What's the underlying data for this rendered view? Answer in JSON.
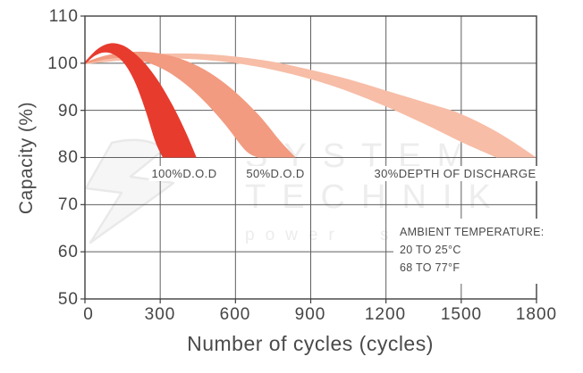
{
  "watermark": {
    "line1": "SYSTEM",
    "line2": "TECHNIK",
    "tagline": "power solutions"
  },
  "chart_data": {
    "type": "area",
    "title": "",
    "xlabel": "Number of cycles (cycles)",
    "ylabel": "Capacity (%)",
    "xlim": [
      0,
      1800
    ],
    "ylim": [
      50,
      110
    ],
    "grid": true,
    "x_ticks": [
      "0",
      "300",
      "600",
      "900",
      "1200",
      "1500",
      "1800"
    ],
    "y_ticks": [
      "110",
      "100",
      "90",
      "80",
      "70",
      "60",
      "50"
    ],
    "annotations": {
      "ambient": {
        "line1": "AMBIENT TEMPERATURE:",
        "line2": "20 TO 25°C",
        "line3": "68 TO 77°F"
      }
    },
    "series": [
      {
        "name": "30% depth of discharge",
        "label": "30%DEPTH OF DISCHARGE",
        "color": "#f7bda7",
        "upper": [
          [
            0,
            100.2
          ],
          [
            150,
            101.4
          ],
          [
            300,
            102.0
          ],
          [
            450,
            102.0
          ],
          [
            600,
            101.4
          ],
          [
            750,
            100.3
          ],
          [
            900,
            98.6
          ],
          [
            1050,
            96.6
          ],
          [
            1200,
            94.2
          ],
          [
            1380,
            91.3
          ],
          [
            1500,
            89.2
          ],
          [
            1650,
            85.2
          ],
          [
            1800,
            80
          ]
        ],
        "lower": [
          [
            0,
            99.8
          ],
          [
            150,
            100.6
          ],
          [
            300,
            101.0
          ],
          [
            450,
            100.8
          ],
          [
            600,
            100.0
          ],
          [
            750,
            98.6
          ],
          [
            900,
            96.6
          ],
          [
            1050,
            94.0
          ],
          [
            1200,
            90.8
          ],
          [
            1350,
            87.2
          ],
          [
            1500,
            83.3
          ],
          [
            1640,
            80
          ]
        ]
      },
      {
        "name": "50% depth of discharge",
        "label": "50%D.O.D",
        "color": "#f29b80",
        "upper": [
          [
            0,
            100.2
          ],
          [
            80,
            101.6
          ],
          [
            160,
            102.3
          ],
          [
            250,
            102.4
          ],
          [
            340,
            101.6
          ],
          [
            430,
            99.9
          ],
          [
            520,
            97.2
          ],
          [
            610,
            93.4
          ],
          [
            700,
            88.6
          ],
          [
            780,
            83.4
          ],
          [
            840,
            80
          ]
        ],
        "lower": [
          [
            0,
            99.8
          ],
          [
            80,
            100.8
          ],
          [
            160,
            101.1
          ],
          [
            240,
            100.3
          ],
          [
            320,
            98.5
          ],
          [
            400,
            95.6
          ],
          [
            480,
            91.7
          ],
          [
            560,
            86.9
          ],
          [
            640,
            81.5
          ],
          [
            690,
            80
          ]
        ]
      },
      {
        "name": "100% depth of discharge",
        "label": "100%D.O.D",
        "color": "#e73b2e",
        "upper": [
          [
            0,
            100.3
          ],
          [
            50,
            103.0
          ],
          [
            100,
            104.2
          ],
          [
            150,
            103.8
          ],
          [
            200,
            102.0
          ],
          [
            250,
            99.3
          ],
          [
            300,
            95.6
          ],
          [
            350,
            91.0
          ],
          [
            400,
            85.6
          ],
          [
            445,
            80
          ]
        ],
        "lower": [
          [
            0,
            99.8
          ],
          [
            40,
            101.6
          ],
          [
            80,
            102.3
          ],
          [
            120,
            101.7
          ],
          [
            160,
            99.7
          ],
          [
            200,
            95.9
          ],
          [
            240,
            90.2
          ],
          [
            280,
            83.4
          ],
          [
            310,
            80
          ]
        ]
      }
    ],
    "style": {
      "grid_color": "#5f5f5f",
      "border_color": "#3f3f3f",
      "text_color": "#4a4a4a",
      "watermark_color": "#ededed"
    }
  }
}
